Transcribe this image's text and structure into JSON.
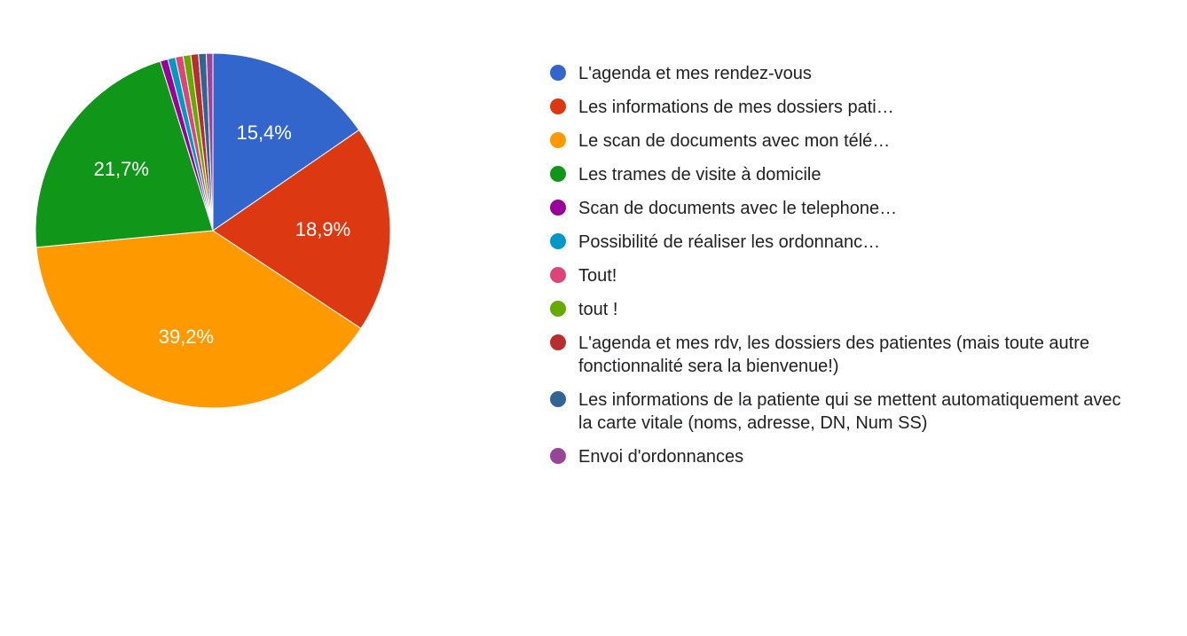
{
  "chart": {
    "type": "pie",
    "background_color": "#ffffff",
    "label_fontsize": 22,
    "label_color": "#ffffff",
    "legend_fontsize": 20,
    "legend_text_color": "#202124",
    "bullet_diameter": 18,
    "pie_diameter": 400,
    "start_angle_deg": -90,
    "slices": [
      {
        "label": "L'agenda et mes rendez-vous",
        "value": 15.4,
        "color": "#3366cc",
        "show_pct": true,
        "pct_text": "15,4%"
      },
      {
        "label": "Les informations de mes dossiers pati…",
        "value": 18.9,
        "color": "#dc3912",
        "show_pct": true,
        "pct_text": "18,9%"
      },
      {
        "label": "Le scan de documents avec mon télé…",
        "value": 39.2,
        "color": "#ff9900",
        "show_pct": true,
        "pct_text": "39,2%"
      },
      {
        "label": "Les trames de visite à domicile",
        "value": 21.7,
        "color": "#109618",
        "show_pct": true,
        "pct_text": "21,7%"
      },
      {
        "label": "Scan de documents avec le telephone…",
        "value": 0.7,
        "color": "#990099",
        "show_pct": false,
        "pct_text": ""
      },
      {
        "label": "Possibilité de réaliser les ordonnanc…",
        "value": 0.7,
        "color": "#0099c6",
        "show_pct": false,
        "pct_text": ""
      },
      {
        "label": "Tout!",
        "value": 0.7,
        "color": "#dd4477",
        "show_pct": false,
        "pct_text": ""
      },
      {
        "label": "tout !",
        "value": 0.7,
        "color": "#66aa00",
        "show_pct": false,
        "pct_text": ""
      },
      {
        "label": "L'agenda et mes rdv, les dossiers des patientes (mais toute autre fonctionnalité sera la bienvenue!)",
        "value": 0.7,
        "color": "#b82e2e",
        "show_pct": false,
        "pct_text": ""
      },
      {
        "label": "Les informations de la patiente qui se mettent automatiquement avec la carte vitale (noms, adresse, DN, Num SS)",
        "value": 0.7,
        "color": "#316395",
        "show_pct": false,
        "pct_text": ""
      },
      {
        "label": "Envoi d'ordonnances",
        "value": 0.6,
        "color": "#994499",
        "show_pct": false,
        "pct_text": ""
      }
    ]
  }
}
